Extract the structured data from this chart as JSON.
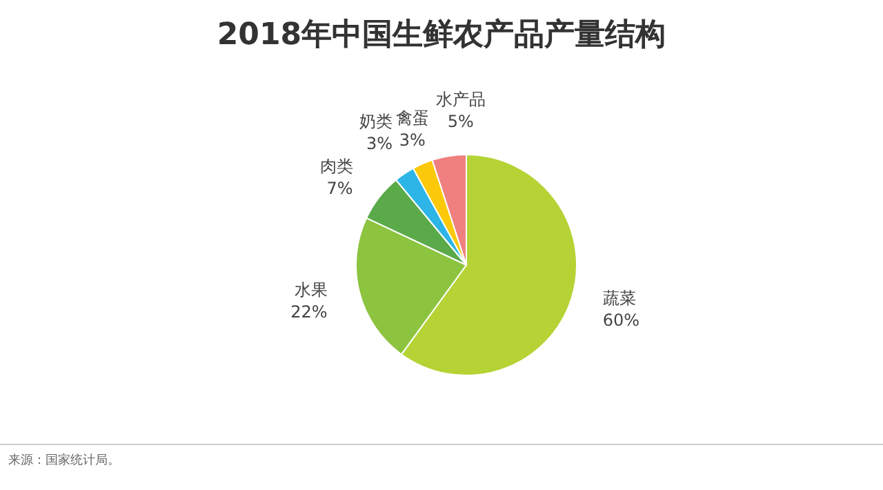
{
  "chart_data": {
    "type": "pie",
    "title": "2018年中国生鲜农产品产量结构",
    "categories": [
      "蔬菜",
      "水果",
      "肉类",
      "奶类",
      "禽蛋",
      "水产品"
    ],
    "values": [
      60,
      22,
      7,
      3,
      3,
      5
    ],
    "colors": [
      "#b5d334",
      "#8cc43f",
      "#5aaa4a",
      "#2cb5e6",
      "#fcc80a",
      "#f08080"
    ],
    "value_labels": [
      "60%",
      "22%",
      "7%",
      "3%",
      "3%",
      "5%"
    ],
    "annotations": [
      "来源：国家统计局。"
    ]
  }
}
